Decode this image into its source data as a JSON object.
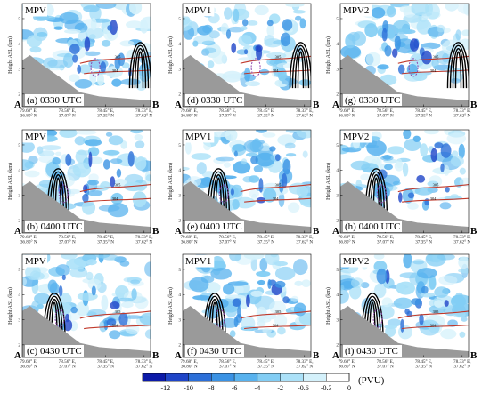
{
  "chart_data": {
    "type": "heatmap",
    "description_units": "PVU",
    "y_axis": {
      "label": "Height ASL (km)",
      "ticks": [
        "2",
        "3",
        "4",
        "5"
      ],
      "ylim": [
        1.5,
        5.6
      ]
    },
    "x_ticks": [
      [
        "79.68° E,",
        "36.80° N"
      ],
      [
        "78.56° E,",
        "37.07° N"
      ],
      [
        "78.45° E,",
        "37.35° N"
      ],
      [
        "78.33° E,",
        "37.62° N"
      ]
    ],
    "endpoints": {
      "start": "A",
      "end": "B"
    },
    "panels": [
      {
        "row": 0,
        "col": 0,
        "variable": "MPV",
        "label": "(a) 0330 UTC"
      },
      {
        "row": 0,
        "col": 1,
        "variable": "MPV1",
        "label": "(d) 0330 UTC"
      },
      {
        "row": 0,
        "col": 2,
        "variable": "MPV2",
        "label": "(g) 0330 UTC"
      },
      {
        "row": 1,
        "col": 0,
        "variable": "MPV",
        "label": "(b) 0400 UTC"
      },
      {
        "row": 1,
        "col": 1,
        "variable": "MPV1",
        "label": "(e) 0400 UTC"
      },
      {
        "row": 1,
        "col": 2,
        "variable": "MPV2",
        "label": "(h) 0400 UTC"
      },
      {
        "row": 2,
        "col": 0,
        "variable": "MPV",
        "label": "(c) 0430 UTC"
      },
      {
        "row": 2,
        "col": 1,
        "variable": "MPV1",
        "label": "(f) 0430 UTC"
      },
      {
        "row": 2,
        "col": 2,
        "variable": "MPV2",
        "label": "(i) 0430 UTC"
      }
    ],
    "contour_labels": [
      "305",
      "304"
    ],
    "colorbar": {
      "unit": "(PVU)",
      "ticks": [
        "-12",
        "-10",
        "-8",
        "-6",
        "-4",
        "-2",
        "-0.6",
        "-0.3",
        "0"
      ],
      "colors": [
        "#0c1aa8",
        "#1f45c8",
        "#2c6fd8",
        "#3a92e4",
        "#58b2ee",
        "#82cdf4",
        "#abe1f8",
        "#d4f1fb",
        "#ffffff"
      ]
    },
    "colors": {
      "terrain": "#9a9a9a",
      "contour": "#000000",
      "theta_line": "#c0392b"
    }
  }
}
